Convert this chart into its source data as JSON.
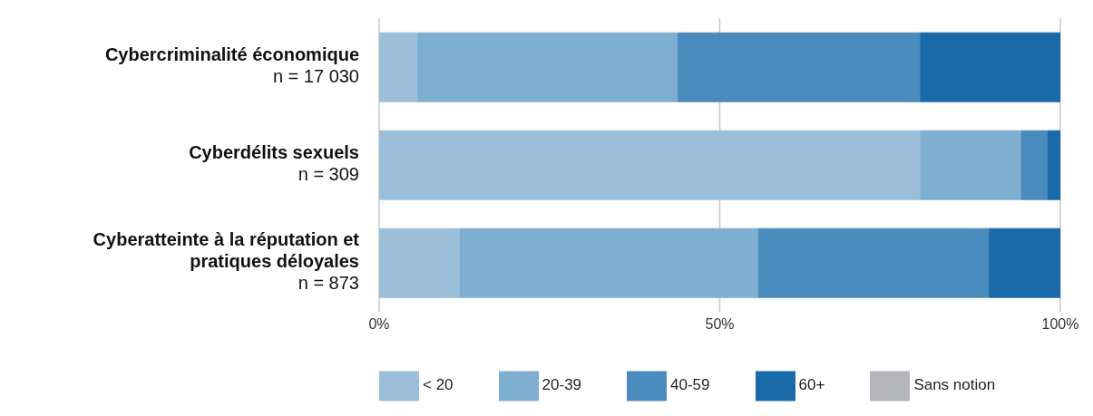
{
  "chart_data": {
    "type": "bar",
    "orientation": "horizontal",
    "stacked": true,
    "categories": [
      "Cybercriminalité économique\nn = 17 030",
      "Cyberdélits sexuels\nn = 309",
      "Cyberatteinte à la réputation et\npratiques déloyales\nn = 873"
    ],
    "series": [
      {
        "name": "< 20",
        "color": "#9bbfd9",
        "values": [
          5.7,
          79.5,
          11.9
        ]
      },
      {
        "name": "20-39",
        "color": "#7eaed0",
        "values": [
          38.2,
          14.8,
          43.8
        ]
      },
      {
        "name": "40-59",
        "color": "#4a8bbd",
        "values": [
          35.6,
          3.9,
          33.9
        ]
      },
      {
        "name": "60+",
        "color": "#1b6aa8",
        "values": [
          20.5,
          1.8,
          10.4
        ]
      },
      {
        "name": "Sans notion",
        "color": "#b4b5b8",
        "values": [
          0,
          0,
          0
        ]
      }
    ],
    "xlim": [
      0,
      100
    ],
    "xticks": [
      {
        "value": 0,
        "label": "0%"
      },
      {
        "value": 50,
        "label": "50%"
      },
      {
        "value": 100,
        "label": "100%"
      }
    ],
    "grid": "x",
    "legend": "bottom"
  }
}
